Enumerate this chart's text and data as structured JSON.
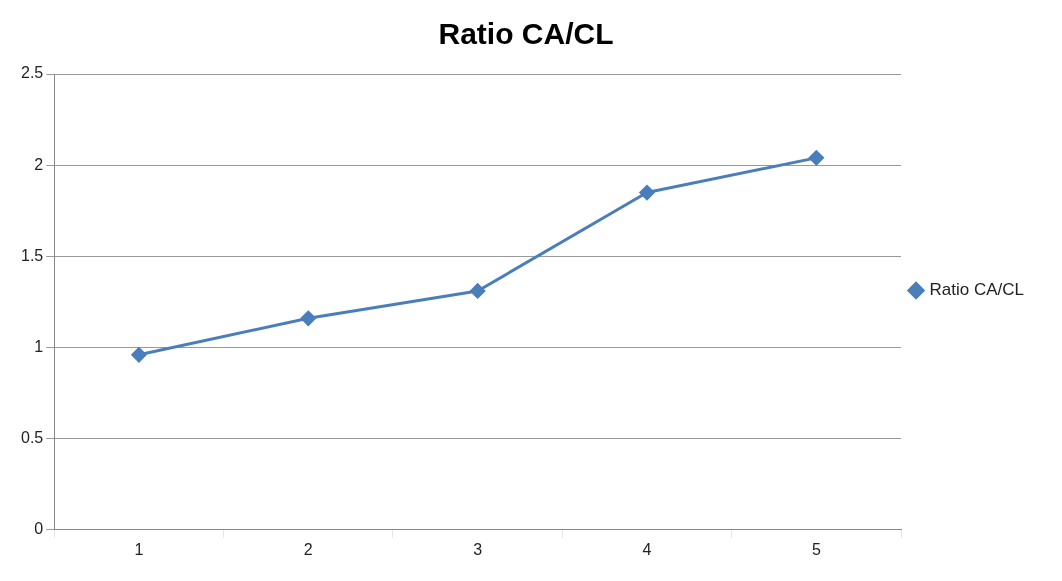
{
  "chart_data": {
    "type": "line",
    "title": "Ratio CA/CL",
    "categories": [
      "1",
      "2",
      "3",
      "4",
      "5"
    ],
    "series": [
      {
        "name": "Ratio CA/CL",
        "color": "#4a7ebb",
        "values": [
          0.96,
          1.16,
          1.31,
          1.85,
          2.04
        ]
      }
    ],
    "ylim": [
      0,
      2.5
    ],
    "yticks": [
      0,
      0.5,
      1,
      1.5,
      2,
      2.5
    ],
    "grid": "y",
    "legend": "right",
    "marker": "diamond",
    "line_style": "solid"
  }
}
